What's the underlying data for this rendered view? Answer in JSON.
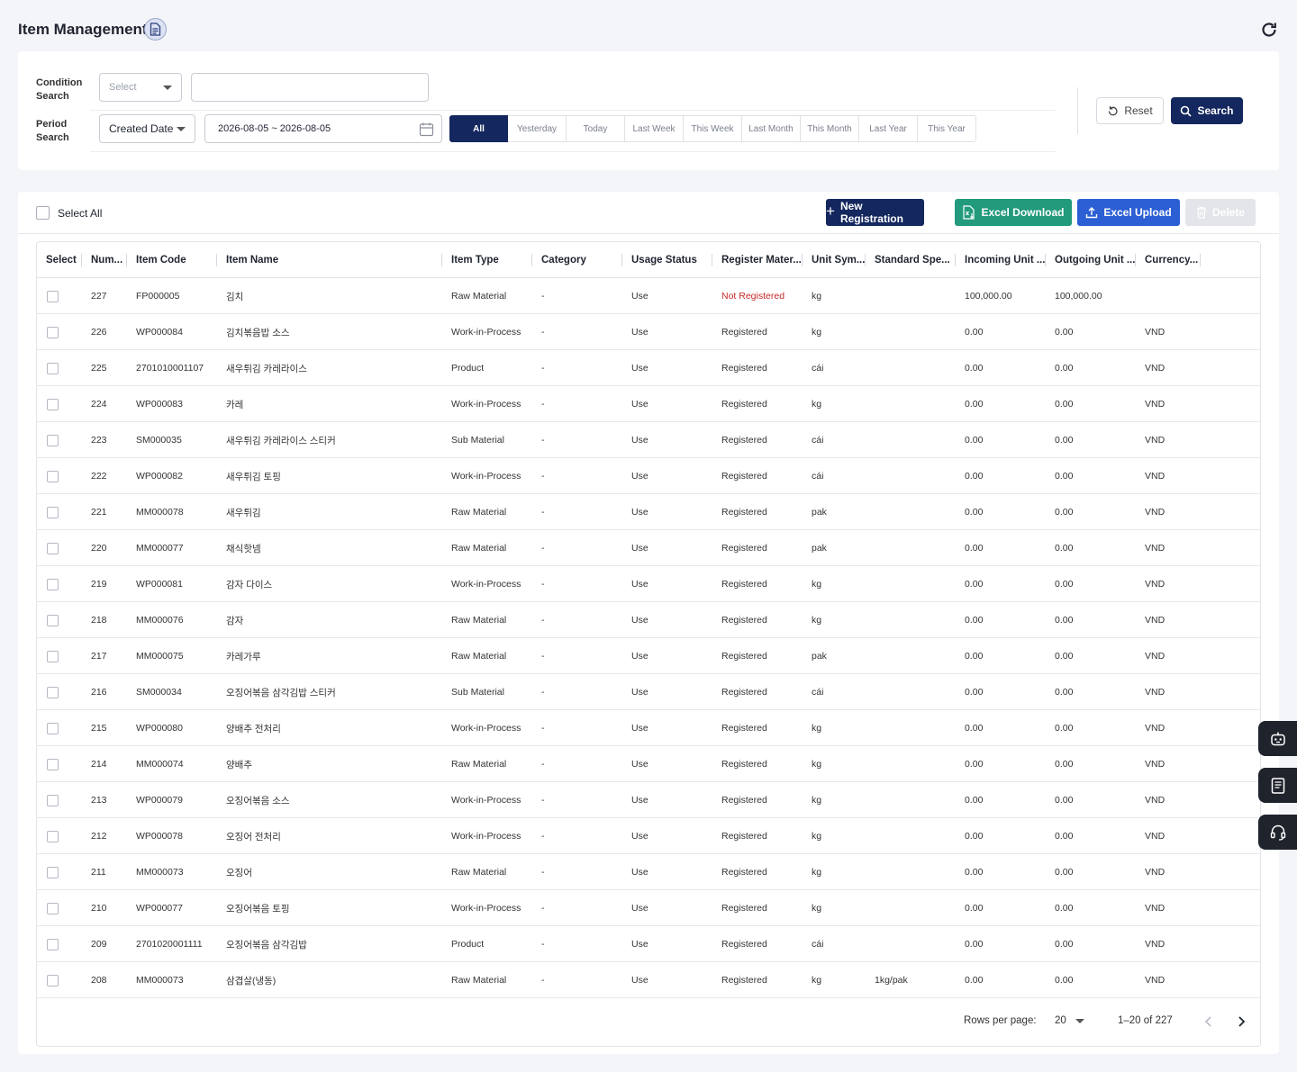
{
  "header": {
    "title": "Item Management",
    "doc_icon": "document-icon",
    "refresh_icon": "refresh-icon"
  },
  "filters": {
    "condition_label_1": "Condition",
    "condition_label_2": "Search",
    "condition_select": "Select",
    "condition_input": "",
    "period_label_1": "Period",
    "period_label_2": "Search",
    "period_select": "Created Date",
    "date_range": "2026-08-05 ~ 2026-08-05",
    "period_buttons": [
      "All",
      "Yesterday",
      "Today",
      "Last Week",
      "This Week",
      "Last Month",
      "This Month",
      "Last Year",
      "This Year"
    ],
    "active_period": "All",
    "reset_label": "Reset",
    "search_label": "Search"
  },
  "toolbar": {
    "select_all_label": "Select All",
    "new_label": "New Registration",
    "excel_download_label": "Excel Download",
    "excel_upload_label": "Excel Upload",
    "delete_label": "Delete"
  },
  "colors": {
    "primary": "#14275e",
    "excel_download": "#229a7c",
    "excel_upload": "#2c5fd3",
    "not_registered": "#c62828"
  },
  "table": {
    "columns": [
      "Select",
      "Num...",
      "Item Code",
      "Item Name",
      "Item Type",
      "Category",
      "Usage Status",
      "Register Mater...",
      "Unit Sym...",
      "Standard Spe...",
      "Incoming Unit ...",
      "Outgoing Unit ...",
      "Currency..."
    ],
    "rows": [
      [
        "227",
        "FP000005",
        "김치",
        "Raw Material",
        "-",
        "Use",
        "Not Registered",
        "kg",
        "",
        "100,000.00",
        "100,000.00",
        ""
      ],
      [
        "226",
        "WP000084",
        "김치볶음밥 소스",
        "Work-in-Process",
        "-",
        "Use",
        "Registered",
        "kg",
        "",
        "0.00",
        "0.00",
        "VND"
      ],
      [
        "225",
        "2701010001107",
        "새우튀김 카레라이스",
        "Product",
        "-",
        "Use",
        "Registered",
        "cái",
        "",
        "0.00",
        "0.00",
        "VND"
      ],
      [
        "224",
        "WP000083",
        "카레",
        "Work-in-Process",
        "-",
        "Use",
        "Registered",
        "kg",
        "",
        "0.00",
        "0.00",
        "VND"
      ],
      [
        "223",
        "SM000035",
        "새우튀김 카레라이스 스티커",
        "Sub Material",
        "-",
        "Use",
        "Registered",
        "cái",
        "",
        "0.00",
        "0.00",
        "VND"
      ],
      [
        "222",
        "WP000082",
        "새우튀김 토핑",
        "Work-in-Process",
        "-",
        "Use",
        "Registered",
        "cái",
        "",
        "0.00",
        "0.00",
        "VND"
      ],
      [
        "221",
        "MM000078",
        "새우튀김",
        "Raw Material",
        "-",
        "Use",
        "Registered",
        "pak",
        "",
        "0.00",
        "0.00",
        "VND"
      ],
      [
        "220",
        "MM000077",
        "채식핫넴",
        "Raw Material",
        "-",
        "Use",
        "Registered",
        "pak",
        "",
        "0.00",
        "0.00",
        "VND"
      ],
      [
        "219",
        "WP000081",
        "감자 다이스",
        "Work-in-Process",
        "-",
        "Use",
        "Registered",
        "kg",
        "",
        "0.00",
        "0.00",
        "VND"
      ],
      [
        "218",
        "MM000076",
        "감자",
        "Raw Material",
        "-",
        "Use",
        "Registered",
        "kg",
        "",
        "0.00",
        "0.00",
        "VND"
      ],
      [
        "217",
        "MM000075",
        "카레가루",
        "Raw Material",
        "-",
        "Use",
        "Registered",
        "pak",
        "",
        "0.00",
        "0.00",
        "VND"
      ],
      [
        "216",
        "SM000034",
        "오징어볶음 삼각김밥 스티커",
        "Sub Material",
        "-",
        "Use",
        "Registered",
        "cái",
        "",
        "0.00",
        "0.00",
        "VND"
      ],
      [
        "215",
        "WP000080",
        "양배추 전처리",
        "Work-in-Process",
        "-",
        "Use",
        "Registered",
        "kg",
        "",
        "0.00",
        "0.00",
        "VND"
      ],
      [
        "214",
        "MM000074",
        "양배추",
        "Raw Material",
        "-",
        "Use",
        "Registered",
        "kg",
        "",
        "0.00",
        "0.00",
        "VND"
      ],
      [
        "213",
        "WP000079",
        "오징어볶음 소스",
        "Work-in-Process",
        "-",
        "Use",
        "Registered",
        "kg",
        "",
        "0.00",
        "0.00",
        "VND"
      ],
      [
        "212",
        "WP000078",
        "오징어 전처리",
        "Work-in-Process",
        "-",
        "Use",
        "Registered",
        "kg",
        "",
        "0.00",
        "0.00",
        "VND"
      ],
      [
        "211",
        "MM000073",
        "오징어",
        "Raw Material",
        "-",
        "Use",
        "Registered",
        "kg",
        "",
        "0.00",
        "0.00",
        "VND"
      ],
      [
        "210",
        "WP000077",
        "오징어볶음 토핑",
        "Work-in-Process",
        "-",
        "Use",
        "Registered",
        "kg",
        "",
        "0.00",
        "0.00",
        "VND"
      ],
      [
        "209",
        "2701020001111",
        "오징어볶음 삼각김밥",
        "Product",
        "-",
        "Use",
        "Registered",
        "cái",
        "",
        "0.00",
        "0.00",
        "VND"
      ],
      [
        "208",
        "MM000073",
        "삼겹살(냉동)",
        "Raw Material",
        "-",
        "Use",
        "Registered",
        "kg",
        "1kg/pak",
        "0.00",
        "0.00",
        "VND"
      ]
    ]
  },
  "pagination": {
    "rows_per_page_label": "Rows per page:",
    "rows_per_page": "20",
    "range": "1–20 of 227"
  },
  "side_buttons": [
    "chatbot-icon",
    "manual-book-icon",
    "headset-support-icon"
  ]
}
